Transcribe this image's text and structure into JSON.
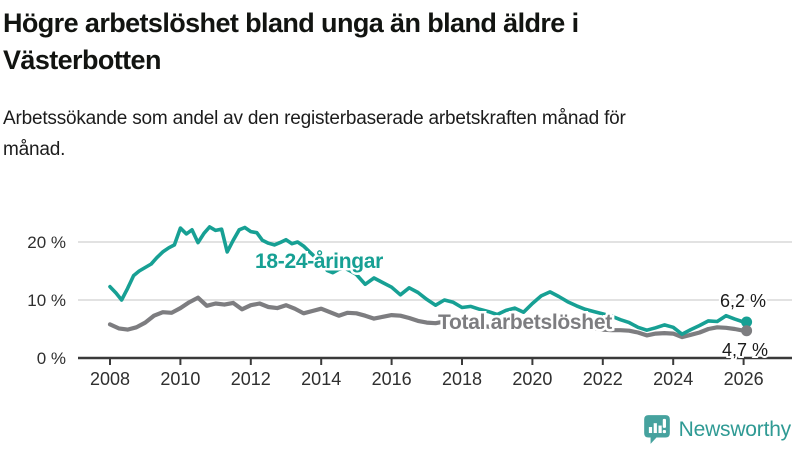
{
  "header": {
    "title": "Högre arbetslöshet bland unga än bland äldre i Västerbotten",
    "subtitle": "Arbetssökande som andel av den registerbaserade arbetskraften månad för månad."
  },
  "footer": {
    "brand": "Newsworthy"
  },
  "colors": {
    "youth": "#17a094",
    "total": "#7d7d80",
    "grid": "#d9d9d9",
    "axis": "#3a3a3a",
    "value_text": "#1a1a1a",
    "tick_text": "#2f2f2f",
    "brand_icon": "#46a29e",
    "brand_text": "#2f9a94"
  },
  "chart_data": {
    "type": "line",
    "title": "Högre arbetslöshet bland unga än bland äldre i Västerbotten",
    "subtitle": "Arbetssökande som andel av den registerbaserade arbetskraften månad för månad.",
    "xlabel": "",
    "ylabel": "",
    "grid": "horizontal",
    "legend_position": "inline-labels",
    "xlim": [
      2007.1,
      2027.4
    ],
    "ylim": [
      0,
      24
    ],
    "x_tick_labels": [
      "2008",
      "2010",
      "2012",
      "2014",
      "2016",
      "2018",
      "2020",
      "2022",
      "2024",
      "2026"
    ],
    "y_ticks": [
      {
        "value": 0,
        "label": "0 %"
      },
      {
        "value": 10,
        "label": "10 %"
      },
      {
        "value": 20,
        "label": "20 %"
      }
    ],
    "series": [
      {
        "name": "18-24-åringar",
        "color_key": "youth",
        "end_label": "6,2 %",
        "end_value": 6.2,
        "points": [
          [
            2008.0,
            12.3
          ],
          [
            2008.17,
            11.2
          ],
          [
            2008.33,
            10.0
          ],
          [
            2008.5,
            12.0
          ],
          [
            2008.67,
            14.2
          ],
          [
            2008.83,
            15.0
          ],
          [
            2009.0,
            15.6
          ],
          [
            2009.17,
            16.2
          ],
          [
            2009.33,
            17.3
          ],
          [
            2009.5,
            18.3
          ],
          [
            2009.67,
            19.0
          ],
          [
            2009.83,
            19.5
          ],
          [
            2010.0,
            22.4
          ],
          [
            2010.17,
            21.4
          ],
          [
            2010.33,
            22.1
          ],
          [
            2010.5,
            19.9
          ],
          [
            2010.67,
            21.5
          ],
          [
            2010.83,
            22.6
          ],
          [
            2011.0,
            22.0
          ],
          [
            2011.17,
            22.2
          ],
          [
            2011.33,
            18.3
          ],
          [
            2011.5,
            20.3
          ],
          [
            2011.67,
            22.1
          ],
          [
            2011.83,
            22.5
          ],
          [
            2012.0,
            21.8
          ],
          [
            2012.17,
            21.6
          ],
          [
            2012.33,
            20.3
          ],
          [
            2012.5,
            19.8
          ],
          [
            2012.67,
            19.5
          ],
          [
            2012.83,
            19.9
          ],
          [
            2013.0,
            20.4
          ],
          [
            2013.17,
            19.7
          ],
          [
            2013.33,
            20.0
          ],
          [
            2013.5,
            19.3
          ],
          [
            2013.67,
            18.3
          ],
          [
            2013.83,
            17.4
          ],
          [
            2014.0,
            16.4
          ],
          [
            2014.17,
            15.1
          ],
          [
            2014.33,
            14.7
          ],
          [
            2014.5,
            15.3
          ],
          [
            2014.67,
            15.5
          ],
          [
            2014.83,
            15.0
          ],
          [
            2015.0,
            14.4
          ],
          [
            2015.25,
            12.7
          ],
          [
            2015.5,
            13.8
          ],
          [
            2015.75,
            13.0
          ],
          [
            2016.0,
            12.2
          ],
          [
            2016.25,
            10.9
          ],
          [
            2016.5,
            12.1
          ],
          [
            2016.75,
            11.3
          ],
          [
            2017.0,
            10.1
          ],
          [
            2017.25,
            9.1
          ],
          [
            2017.5,
            10.0
          ],
          [
            2017.75,
            9.6
          ],
          [
            2018.0,
            8.7
          ],
          [
            2018.25,
            8.9
          ],
          [
            2018.5,
            8.4
          ],
          [
            2018.75,
            8.0
          ],
          [
            2019.0,
            7.5
          ],
          [
            2019.25,
            8.2
          ],
          [
            2019.5,
            8.6
          ],
          [
            2019.75,
            7.9
          ],
          [
            2020.0,
            9.4
          ],
          [
            2020.25,
            10.7
          ],
          [
            2020.5,
            11.4
          ],
          [
            2020.75,
            10.6
          ],
          [
            2021.0,
            9.7
          ],
          [
            2021.25,
            9.0
          ],
          [
            2021.5,
            8.4
          ],
          [
            2021.75,
            8.0
          ],
          [
            2022.0,
            7.6
          ],
          [
            2022.25,
            7.2
          ],
          [
            2022.5,
            6.6
          ],
          [
            2022.75,
            6.1
          ],
          [
            2023.0,
            5.3
          ],
          [
            2023.25,
            4.8
          ],
          [
            2023.5,
            5.2
          ],
          [
            2023.75,
            5.7
          ],
          [
            2024.0,
            5.3
          ],
          [
            2024.25,
            4.1
          ],
          [
            2024.5,
            4.9
          ],
          [
            2024.75,
            5.6
          ],
          [
            2025.0,
            6.4
          ],
          [
            2025.25,
            6.3
          ],
          [
            2025.5,
            7.3
          ],
          [
            2025.75,
            6.7
          ],
          [
            2026.0,
            6.2
          ]
        ]
      },
      {
        "name": "Total arbetslöshet",
        "color_key": "total",
        "end_label": "4,7 %",
        "end_value": 4.7,
        "points": [
          [
            2008.0,
            5.8
          ],
          [
            2008.25,
            5.1
          ],
          [
            2008.5,
            4.9
          ],
          [
            2008.75,
            5.3
          ],
          [
            2009.0,
            6.1
          ],
          [
            2009.25,
            7.3
          ],
          [
            2009.5,
            7.9
          ],
          [
            2009.75,
            7.8
          ],
          [
            2010.0,
            8.6
          ],
          [
            2010.25,
            9.6
          ],
          [
            2010.5,
            10.4
          ],
          [
            2010.75,
            9.0
          ],
          [
            2011.0,
            9.4
          ],
          [
            2011.25,
            9.2
          ],
          [
            2011.5,
            9.5
          ],
          [
            2011.75,
            8.4
          ],
          [
            2012.0,
            9.1
          ],
          [
            2012.25,
            9.4
          ],
          [
            2012.5,
            8.8
          ],
          [
            2012.75,
            8.6
          ],
          [
            2013.0,
            9.1
          ],
          [
            2013.25,
            8.5
          ],
          [
            2013.5,
            7.7
          ],
          [
            2013.75,
            8.1
          ],
          [
            2014.0,
            8.5
          ],
          [
            2014.25,
            7.9
          ],
          [
            2014.5,
            7.3
          ],
          [
            2014.75,
            7.8
          ],
          [
            2015.0,
            7.7
          ],
          [
            2015.25,
            7.3
          ],
          [
            2015.5,
            6.8
          ],
          [
            2015.75,
            7.1
          ],
          [
            2016.0,
            7.4
          ],
          [
            2016.25,
            7.3
          ],
          [
            2016.5,
            6.9
          ],
          [
            2016.75,
            6.4
          ],
          [
            2017.0,
            6.1
          ],
          [
            2017.25,
            6.0
          ],
          [
            2017.5,
            6.3
          ],
          [
            2017.75,
            6.1
          ],
          [
            2018.0,
            5.9
          ],
          [
            2018.25,
            5.7
          ],
          [
            2018.5,
            5.6
          ],
          [
            2018.75,
            5.4
          ],
          [
            2019.0,
            5.2
          ],
          [
            2019.25,
            5.3
          ],
          [
            2019.5,
            5.4
          ],
          [
            2019.75,
            5.3
          ],
          [
            2020.0,
            5.6
          ],
          [
            2020.25,
            6.2
          ],
          [
            2020.5,
            6.5
          ],
          [
            2020.75,
            6.2
          ],
          [
            2021.0,
            5.9
          ],
          [
            2021.25,
            5.6
          ],
          [
            2021.5,
            5.3
          ],
          [
            2021.75,
            5.1
          ],
          [
            2022.0,
            4.9
          ],
          [
            2022.25,
            4.8
          ],
          [
            2022.5,
            4.8
          ],
          [
            2022.75,
            4.7
          ],
          [
            2023.0,
            4.4
          ],
          [
            2023.25,
            3.9
          ],
          [
            2023.5,
            4.2
          ],
          [
            2023.75,
            4.3
          ],
          [
            2024.0,
            4.2
          ],
          [
            2024.25,
            3.6
          ],
          [
            2024.5,
            4.0
          ],
          [
            2024.75,
            4.4
          ],
          [
            2025.0,
            5.0
          ],
          [
            2025.25,
            5.3
          ],
          [
            2025.5,
            5.2
          ],
          [
            2025.75,
            5.0
          ],
          [
            2026.0,
            4.7
          ]
        ]
      }
    ]
  }
}
